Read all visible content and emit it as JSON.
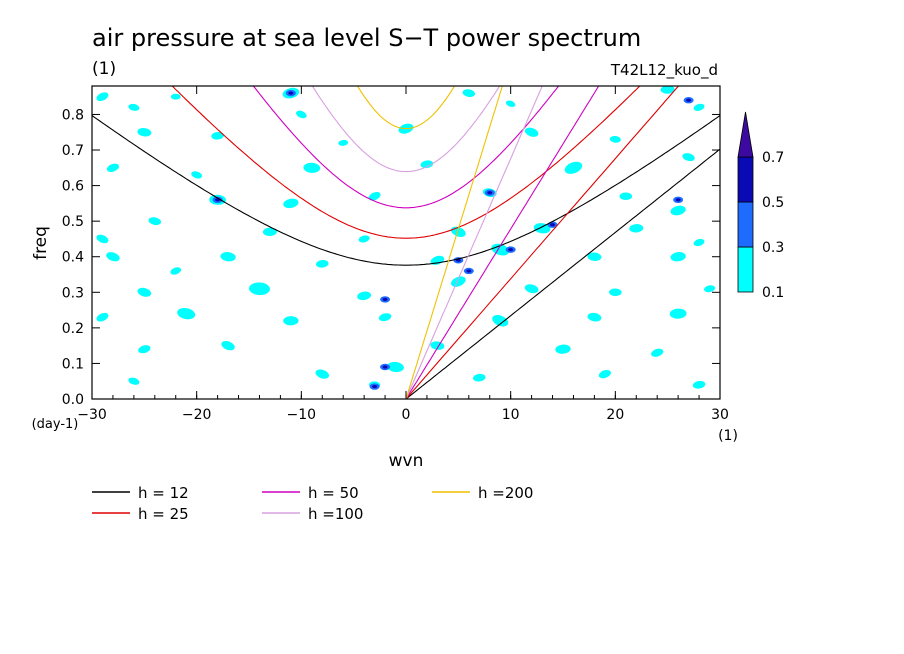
{
  "chart_data": {
    "type": "contour",
    "title": "air pressure at sea level S−T power spectrum",
    "units_label": "(1)",
    "run_label": "T42L12_kuo_d",
    "xlabel": "wvn",
    "x_units": "(1)",
    "ylabel": "freq",
    "y_units": "(day-1)",
    "xlim": [
      -30,
      30
    ],
    "ylim": [
      0,
      0.88
    ],
    "x_ticks": [
      -30,
      -20,
      -10,
      0,
      10,
      20,
      30
    ],
    "x_tick_labels": [
      "−30",
      "−20",
      "−10",
      "0",
      "10",
      "20",
      "30"
    ],
    "y_ticks": [
      0.0,
      0.1,
      0.2,
      0.3,
      0.4,
      0.5,
      0.6,
      0.7,
      0.8
    ],
    "y_tick_labels": [
      "0.0",
      "0.1",
      "0.2",
      "0.3",
      "0.4",
      "0.5",
      "0.6",
      "0.7",
      "0.8"
    ],
    "colorbar": {
      "levels": [
        "0.1",
        "0.3",
        "0.5",
        "0.7"
      ],
      "colors": [
        "#00ffff",
        "#1e6bff",
        "#0a0ab4",
        "#3c0aa0"
      ]
    },
    "spectrum_blobs": [
      {
        "x": -29,
        "y": 0.85,
        "r": 0.9
      },
      {
        "x": -26,
        "y": 0.82,
        "r": 0.8
      },
      {
        "x": -22,
        "y": 0.85,
        "r": 0.7
      },
      {
        "x": -11,
        "y": 0.86,
        "r": 1.2
      },
      {
        "x": -10,
        "y": 0.8,
        "r": 0.8
      },
      {
        "x": 6,
        "y": 0.86,
        "r": 0.9
      },
      {
        "x": 25,
        "y": 0.87,
        "r": 1.0
      },
      {
        "x": 28,
        "y": 0.82,
        "r": 0.8
      },
      {
        "x": 10,
        "y": 0.83,
        "r": 0.7
      },
      {
        "x": -25,
        "y": 0.75,
        "r": 1.0
      },
      {
        "x": -18,
        "y": 0.74,
        "r": 0.9
      },
      {
        "x": 0,
        "y": 0.76,
        "r": 1.1
      },
      {
        "x": 12,
        "y": 0.75,
        "r": 1.0
      },
      {
        "x": 20,
        "y": 0.73,
        "r": 0.8
      },
      {
        "x": -6,
        "y": 0.72,
        "r": 0.7
      },
      {
        "x": -28,
        "y": 0.65,
        "r": 0.9
      },
      {
        "x": -20,
        "y": 0.63,
        "r": 0.8
      },
      {
        "x": -9,
        "y": 0.65,
        "r": 1.2
      },
      {
        "x": 2,
        "y": 0.66,
        "r": 0.9
      },
      {
        "x": 16,
        "y": 0.65,
        "r": 1.3
      },
      {
        "x": 27,
        "y": 0.68,
        "r": 0.9
      },
      {
        "x": -18,
        "y": 0.56,
        "r": 1.2
      },
      {
        "x": -11,
        "y": 0.55,
        "r": 1.1
      },
      {
        "x": -3,
        "y": 0.57,
        "r": 0.9
      },
      {
        "x": 8,
        "y": 0.58,
        "r": 1.0
      },
      {
        "x": 21,
        "y": 0.57,
        "r": 0.9
      },
      {
        "x": 26,
        "y": 0.53,
        "r": 1.1
      },
      {
        "x": -29,
        "y": 0.45,
        "r": 0.9
      },
      {
        "x": -24,
        "y": 0.5,
        "r": 0.9
      },
      {
        "x": -13,
        "y": 0.47,
        "r": 1.0
      },
      {
        "x": -4,
        "y": 0.45,
        "r": 0.8
      },
      {
        "x": 5,
        "y": 0.47,
        "r": 1.1
      },
      {
        "x": 13,
        "y": 0.48,
        "r": 1.2
      },
      {
        "x": 22,
        "y": 0.48,
        "r": 1.0
      },
      {
        "x": 28,
        "y": 0.44,
        "r": 0.8
      },
      {
        "x": -28,
        "y": 0.4,
        "r": 1.0
      },
      {
        "x": -17,
        "y": 0.4,
        "r": 1.1
      },
      {
        "x": -8,
        "y": 0.38,
        "r": 0.9
      },
      {
        "x": 3,
        "y": 0.39,
        "r": 1.0
      },
      {
        "x": 9,
        "y": 0.42,
        "r": 1.3
      },
      {
        "x": 18,
        "y": 0.4,
        "r": 1.0
      },
      {
        "x": 26,
        "y": 0.4,
        "r": 1.1
      },
      {
        "x": -22,
        "y": 0.36,
        "r": 0.8
      },
      {
        "x": -25,
        "y": 0.3,
        "r": 1.0
      },
      {
        "x": -14,
        "y": 0.31,
        "r": 1.5
      },
      {
        "x": -4,
        "y": 0.29,
        "r": 1.0
      },
      {
        "x": 5,
        "y": 0.33,
        "r": 1.1
      },
      {
        "x": 12,
        "y": 0.31,
        "r": 1.0
      },
      {
        "x": 20,
        "y": 0.3,
        "r": 0.9
      },
      {
        "x": 29,
        "y": 0.31,
        "r": 0.8
      },
      {
        "x": -29,
        "y": 0.23,
        "r": 0.9
      },
      {
        "x": -21,
        "y": 0.24,
        "r": 1.3
      },
      {
        "x": -11,
        "y": 0.22,
        "r": 1.1
      },
      {
        "x": -2,
        "y": 0.23,
        "r": 0.9
      },
      {
        "x": 9,
        "y": 0.22,
        "r": 1.2
      },
      {
        "x": 18,
        "y": 0.23,
        "r": 1.0
      },
      {
        "x": 26,
        "y": 0.24,
        "r": 1.2
      },
      {
        "x": -25,
        "y": 0.14,
        "r": 0.9
      },
      {
        "x": -17,
        "y": 0.15,
        "r": 1.0
      },
      {
        "x": 3,
        "y": 0.15,
        "r": 1.0
      },
      {
        "x": 15,
        "y": 0.14,
        "r": 1.1
      },
      {
        "x": 24,
        "y": 0.13,
        "r": 0.9
      },
      {
        "x": -8,
        "y": 0.07,
        "r": 1.0
      },
      {
        "x": -1,
        "y": 0.09,
        "r": 1.2
      },
      {
        "x": 7,
        "y": 0.06,
        "r": 0.9
      },
      {
        "x": 19,
        "y": 0.07,
        "r": 0.9
      },
      {
        "x": -26,
        "y": 0.05,
        "r": 0.8
      },
      {
        "x": -3,
        "y": 0.04,
        "r": 0.8
      },
      {
        "x": 28,
        "y": 0.04,
        "r": 0.9
      }
    ],
    "spectrum_peaks": [
      {
        "x": -2,
        "y": 0.09
      },
      {
        "x": -3,
        "y": 0.035
      },
      {
        "x": -2,
        "y": 0.28
      },
      {
        "x": 5,
        "y": 0.39
      },
      {
        "x": 10,
        "y": 0.42
      },
      {
        "x": 6,
        "y": 0.36
      },
      {
        "x": 14,
        "y": 0.49
      },
      {
        "x": 8,
        "y": 0.58
      },
      {
        "x": -18,
        "y": 0.56
      },
      {
        "x": -11,
        "y": 0.86
      },
      {
        "x": 27,
        "y": 0.84
      },
      {
        "x": 26,
        "y": 0.56
      }
    ],
    "series": [
      {
        "name": "h = 12",
        "h": 12,
        "color": "#000000"
      },
      {
        "name": "h = 25",
        "h": 25,
        "color": "#e00000"
      },
      {
        "name": "h = 50",
        "h": 50,
        "color": "#d000c0"
      },
      {
        "name": "h =100",
        "h": 100,
        "color": "#d8a0e0"
      },
      {
        "name": "h =200",
        "h": 200,
        "color": "#f0c000"
      }
    ],
    "legend": {
      "placement": "bottom"
    }
  }
}
